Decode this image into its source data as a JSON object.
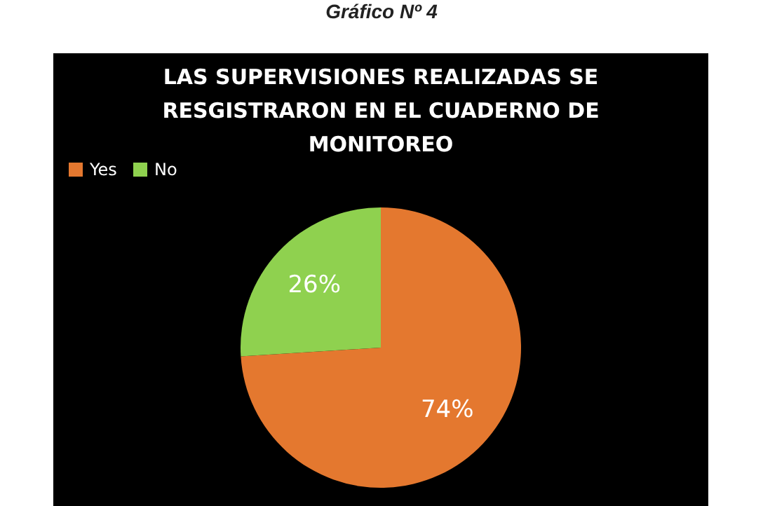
{
  "chart_data": {
    "type": "pie",
    "title": "Gráfico Nº 4",
    "subtitle": "LAS SUPERVISIONES REALIZADAS SE RESGISTRARON EN EL CUADERNO DE MONITOREO",
    "categories": [
      "Yes",
      "No"
    ],
    "values": [
      74,
      26
    ],
    "colors": [
      "#e4782f",
      "#8fd14f"
    ],
    "value_labels": [
      "74%",
      "26%"
    ],
    "legend": "top"
  }
}
